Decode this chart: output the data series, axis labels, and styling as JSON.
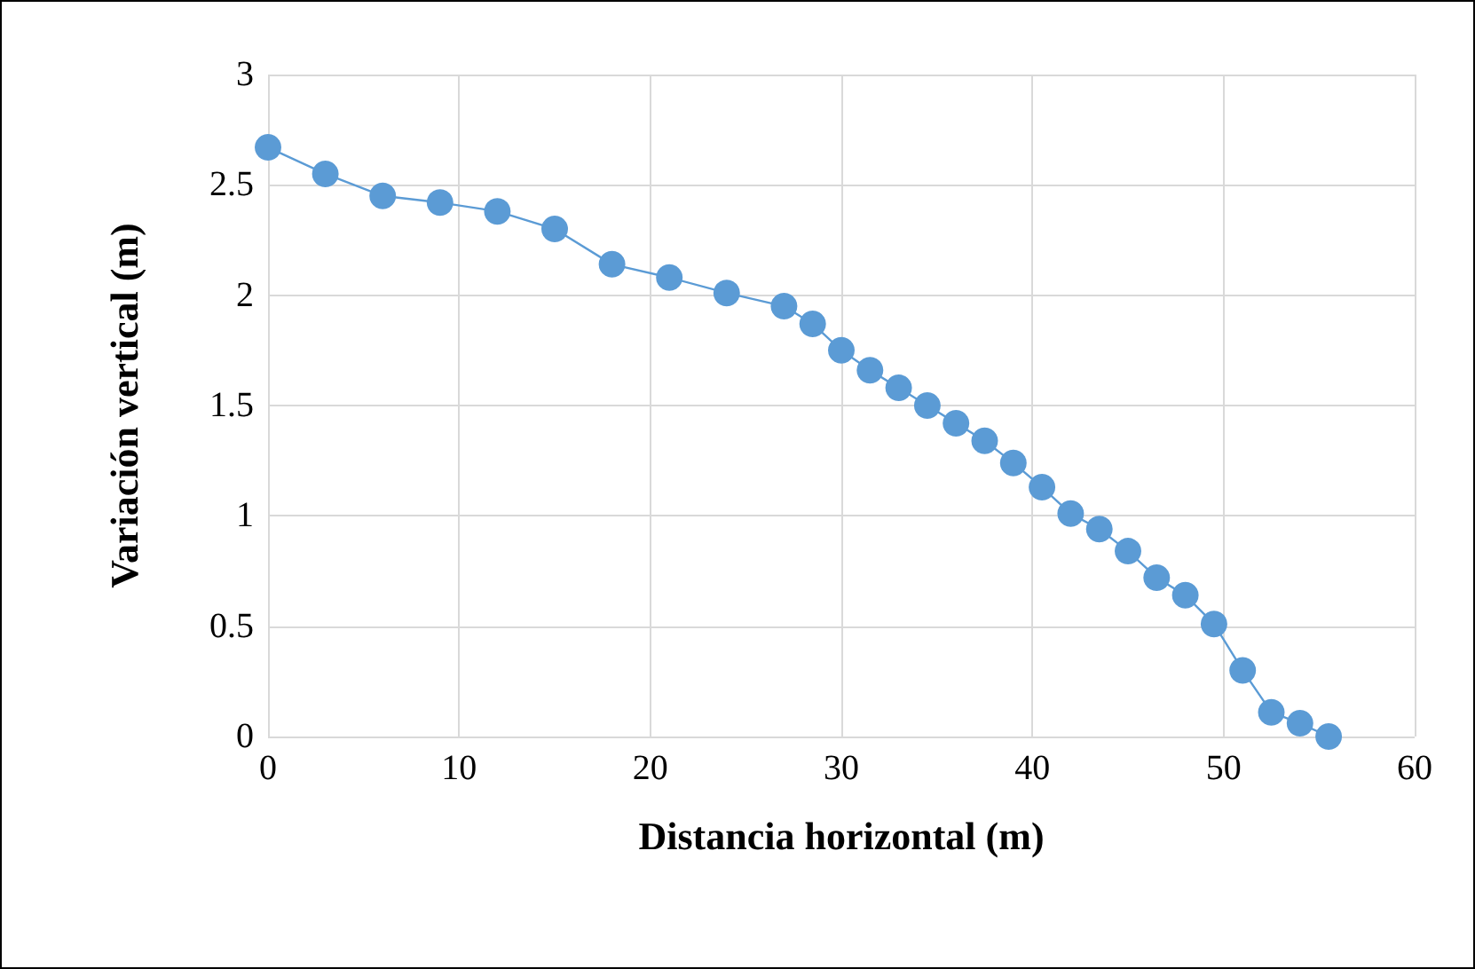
{
  "chart_data": {
    "type": "line",
    "xlabel": "Distancia horizontal (m)",
    "ylabel": "Variación vertical (m)",
    "x": [
      0,
      3,
      6,
      9,
      12,
      15,
      18,
      21,
      24,
      27,
      28.5,
      30,
      31.5,
      33,
      34.5,
      36,
      37.5,
      39,
      40.5,
      42,
      43.5,
      45,
      46.5,
      48,
      49.5,
      51,
      52.5,
      54,
      55.5
    ],
    "series": [
      {
        "color": "#5b9bd5",
        "values": [
          2.67,
          2.55,
          2.45,
          2.42,
          2.38,
          2.3,
          2.14,
          2.08,
          2.01,
          1.95,
          1.87,
          1.75,
          1.66,
          1.58,
          1.5,
          1.42,
          1.34,
          1.24,
          1.13,
          1.01,
          0.94,
          0.84,
          0.72,
          0.64,
          0.51,
          0.3,
          0.11,
          0.06,
          0.0
        ]
      }
    ],
    "xlim": [
      0,
      60
    ],
    "xticks": [
      0,
      10,
      20,
      30,
      40,
      50,
      60
    ],
    "ylim": [
      0,
      3
    ],
    "yticks": [
      0,
      0.5,
      1,
      1.5,
      2,
      2.5,
      3
    ],
    "grid": true,
    "marker": "circle",
    "line_style": "solid"
  }
}
